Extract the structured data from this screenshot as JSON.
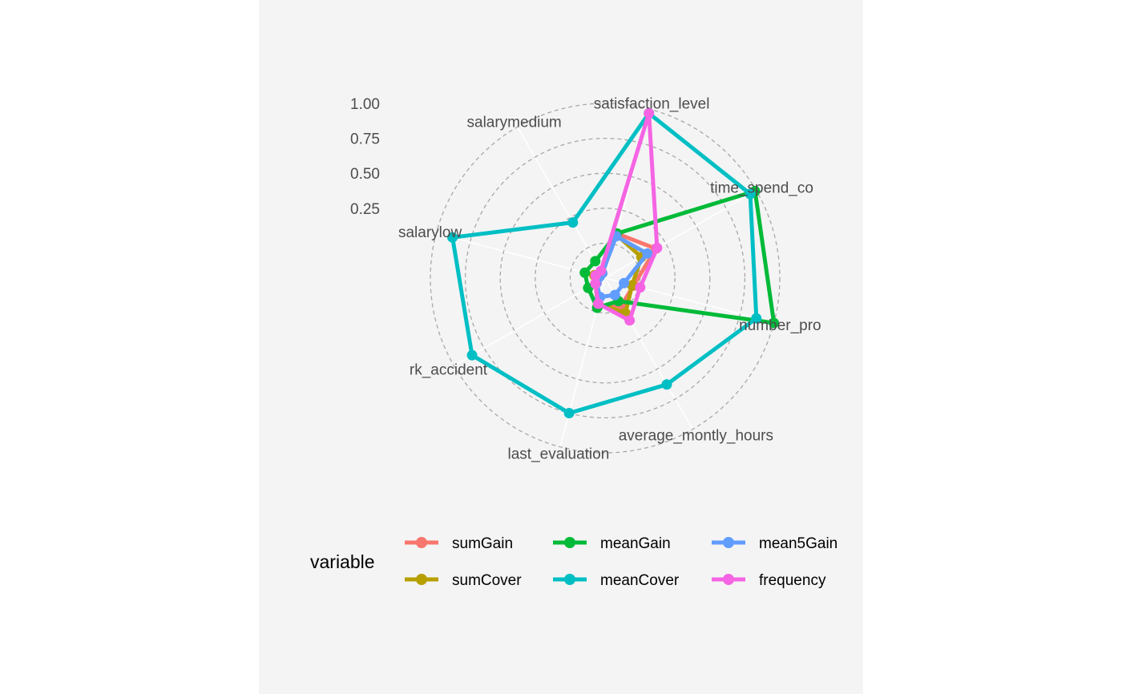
{
  "chart_data": {
    "type": "radar",
    "axes": [
      "satisfaction_level",
      "time_spend_co",
      "number_pro",
      "average_montly_hours",
      "last_evaluation",
      "rk_accident",
      "salarylow",
      "salarymedium"
    ],
    "radial_ticks": [
      "0.25",
      "0.50",
      "0.75",
      "1.00"
    ],
    "rlim": [
      -0.25,
      1.0
    ],
    "grid": true,
    "legend_title": "variable",
    "legend_position": "bottom",
    "series": [
      {
        "name": "sumGain",
        "color": "#F8766D",
        "values": [
          0.08,
          0.17,
          -0.04,
          -0.02,
          -0.05,
          -0.17,
          -0.18,
          -0.21
        ]
      },
      {
        "name": "sumCover",
        "color": "#B79F00",
        "values": [
          0.07,
          0.05,
          -0.05,
          0.04,
          -0.06,
          -0.17,
          -0.17,
          -0.2
        ]
      },
      {
        "name": "meanGain",
        "color": "#00BA38",
        "values": [
          0.08,
          0.99,
          1.0,
          -0.06,
          -0.03,
          -0.11,
          -0.1,
          -0.11
        ]
      },
      {
        "name": "meanCover",
        "color": "#00BFC4",
        "values": [
          0.97,
          0.95,
          0.87,
          0.63,
          0.75,
          0.85,
          0.88,
          0.21
        ]
      },
      {
        "name": "mean5Gain",
        "color": "#619CFF",
        "values": [
          0.06,
          0.1,
          -0.11,
          -0.11,
          -0.11,
          -0.18,
          -0.21,
          -0.21
        ]
      },
      {
        "name": "frequency",
        "color": "#F564E3",
        "values": [
          0.97,
          0.18,
          0.01,
          0.1,
          -0.06,
          -0.17,
          -0.18,
          -0.19
        ]
      }
    ]
  }
}
